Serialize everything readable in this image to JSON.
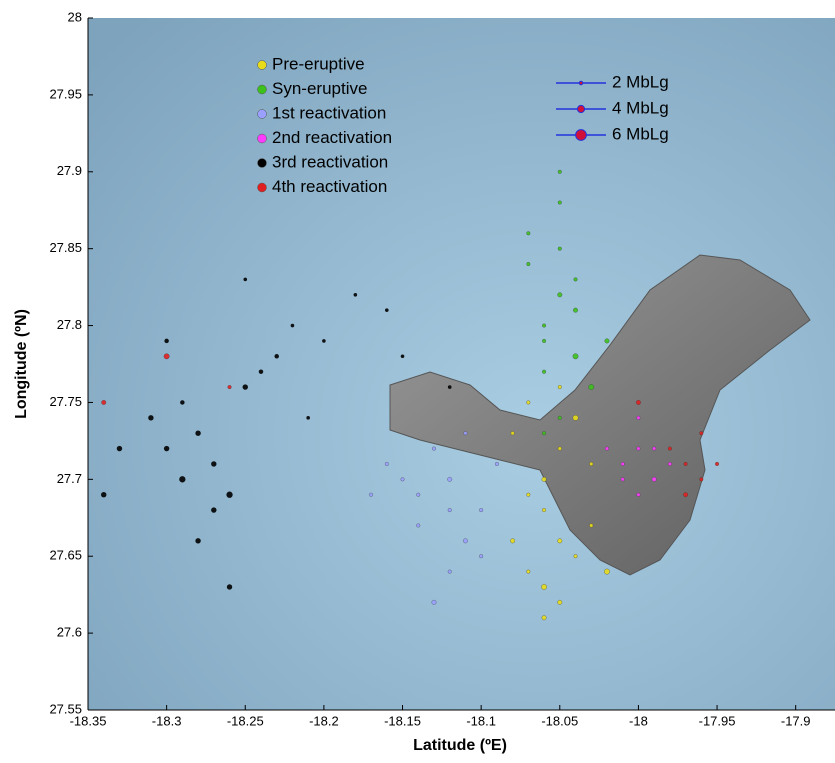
{
  "chart_data": {
    "type": "scatter",
    "xlabel": "Latitude (ºE)",
    "ylabel": "Longitude (ºN)",
    "xlim": [
      -18.35,
      -17.875
    ],
    "ylim": [
      27.55,
      28
    ],
    "xticks": [
      -18.35,
      -18.3,
      -18.25,
      -18.2,
      -18.15,
      -18.1,
      -18.05,
      -18,
      -17.95,
      -17.9
    ],
    "yticks": [
      27.55,
      27.6,
      27.65,
      27.7,
      27.75,
      27.8,
      27.85,
      27.9,
      27.95,
      28
    ],
    "series": [
      {
        "name": "Pre-eruptive",
        "color": "#e8dc1a",
        "x": [
          -18.08,
          -18.07,
          -18.06,
          -18.05,
          -18.04,
          -18.03,
          -18.06,
          -18.05,
          -18.07,
          -18.04,
          -18.06,
          -18.05,
          -18.02,
          -18.07,
          -18.05,
          -18.06,
          -18.03,
          -18.08
        ],
        "y": [
          27.66,
          27.64,
          27.63,
          27.62,
          27.65,
          27.67,
          27.7,
          27.72,
          27.75,
          27.74,
          27.68,
          27.66,
          27.64,
          27.69,
          27.76,
          27.61,
          27.71,
          27.73
        ],
        "size": [
          2.5,
          2,
          3,
          2.5,
          2,
          2,
          2.5,
          2,
          2,
          3,
          2,
          2.5,
          3,
          2,
          2,
          2.5,
          2,
          2
        ]
      },
      {
        "name": "Syn-eruptive",
        "color": "#3cc01c",
        "x": [
          -18.06,
          -18.05,
          -18.04,
          -18.05,
          -18.06,
          -18.04,
          -18.07,
          -18.05,
          -18.03,
          -18.06,
          -18.05,
          -18.04,
          -18.07,
          -18.06,
          -18.02,
          -18.05
        ],
        "y": [
          27.8,
          27.82,
          27.78,
          27.85,
          27.77,
          27.81,
          27.84,
          27.88,
          27.76,
          27.79,
          27.74,
          27.83,
          27.86,
          27.73,
          27.79,
          27.9
        ],
        "size": [
          2,
          2.5,
          3,
          2,
          2,
          2.5,
          2,
          2,
          3,
          2,
          2,
          2,
          2,
          2,
          2.5,
          2
        ]
      },
      {
        "name": "1st reactivation",
        "color": "#9aa0ff",
        "x": [
          -18.16,
          -18.14,
          -18.12,
          -18.1,
          -18.13,
          -18.11,
          -18.15,
          -18.09,
          -18.12,
          -18.14,
          -18.11,
          -18.13,
          -18.17,
          -18.1,
          -18.12
        ],
        "y": [
          27.71,
          27.69,
          27.7,
          27.68,
          27.72,
          27.66,
          27.7,
          27.71,
          27.64,
          27.67,
          27.73,
          27.62,
          27.69,
          27.65,
          27.68
        ],
        "size": [
          2,
          2,
          2.5,
          2,
          2,
          2.5,
          2,
          2,
          2,
          2,
          2,
          2.5,
          2,
          2,
          2
        ]
      },
      {
        "name": "2nd reactivation",
        "color": "#ff3cff",
        "x": [
          -18.01,
          -18.0,
          -17.99,
          -18.02,
          -18.0,
          -17.99,
          -18.01,
          -17.98,
          -18.0
        ],
        "y": [
          27.71,
          27.72,
          27.7,
          27.72,
          27.69,
          27.72,
          27.7,
          27.71,
          27.74
        ],
        "size": [
          2,
          2,
          2.5,
          2,
          2,
          2,
          2,
          2,
          2
        ]
      },
      {
        "name": "3rd reactivation",
        "color": "#000000",
        "x": [
          -18.3,
          -18.28,
          -18.29,
          -18.27,
          -18.31,
          -18.26,
          -18.24,
          -18.23,
          -18.25,
          -18.22,
          -18.33,
          -18.29,
          -18.27,
          -18.2,
          -18.18,
          -18.15,
          -18.12,
          -18.34,
          -18.26,
          -18.28,
          -18.25,
          -18.3,
          -18.21,
          -18.16
        ],
        "y": [
          27.72,
          27.73,
          27.7,
          27.71,
          27.74,
          27.69,
          27.77,
          27.78,
          27.76,
          27.8,
          27.72,
          27.75,
          27.68,
          27.79,
          27.82,
          27.78,
          27.76,
          27.69,
          27.63,
          27.66,
          27.83,
          27.79,
          27.74,
          27.81
        ],
        "size": [
          3,
          3,
          3.5,
          3,
          3,
          3.5,
          2.5,
          2.5,
          3,
          2,
          3,
          2.5,
          3,
          2,
          2,
          2,
          2,
          3,
          3,
          3,
          2,
          2.5,
          2,
          2
        ]
      },
      {
        "name": "4th reactivation",
        "color": "#e02020",
        "x": [
          -18.3,
          -18.34,
          -18.26,
          -17.97,
          -17.96,
          -17.98,
          -17.97,
          -17.95,
          -18.0,
          -17.96
        ],
        "y": [
          27.78,
          27.75,
          27.76,
          27.71,
          27.7,
          27.72,
          27.69,
          27.71,
          27.75,
          27.73
        ],
        "size": [
          3,
          2.5,
          2,
          2,
          2,
          2,
          2.5,
          2,
          2.5,
          2
        ]
      }
    ],
    "size_legend": [
      {
        "value": 2,
        "label": "2 MbLg"
      },
      {
        "value": 4,
        "label": "4 MbLg"
      },
      {
        "value": 6,
        "label": "6 MbLg"
      }
    ]
  }
}
